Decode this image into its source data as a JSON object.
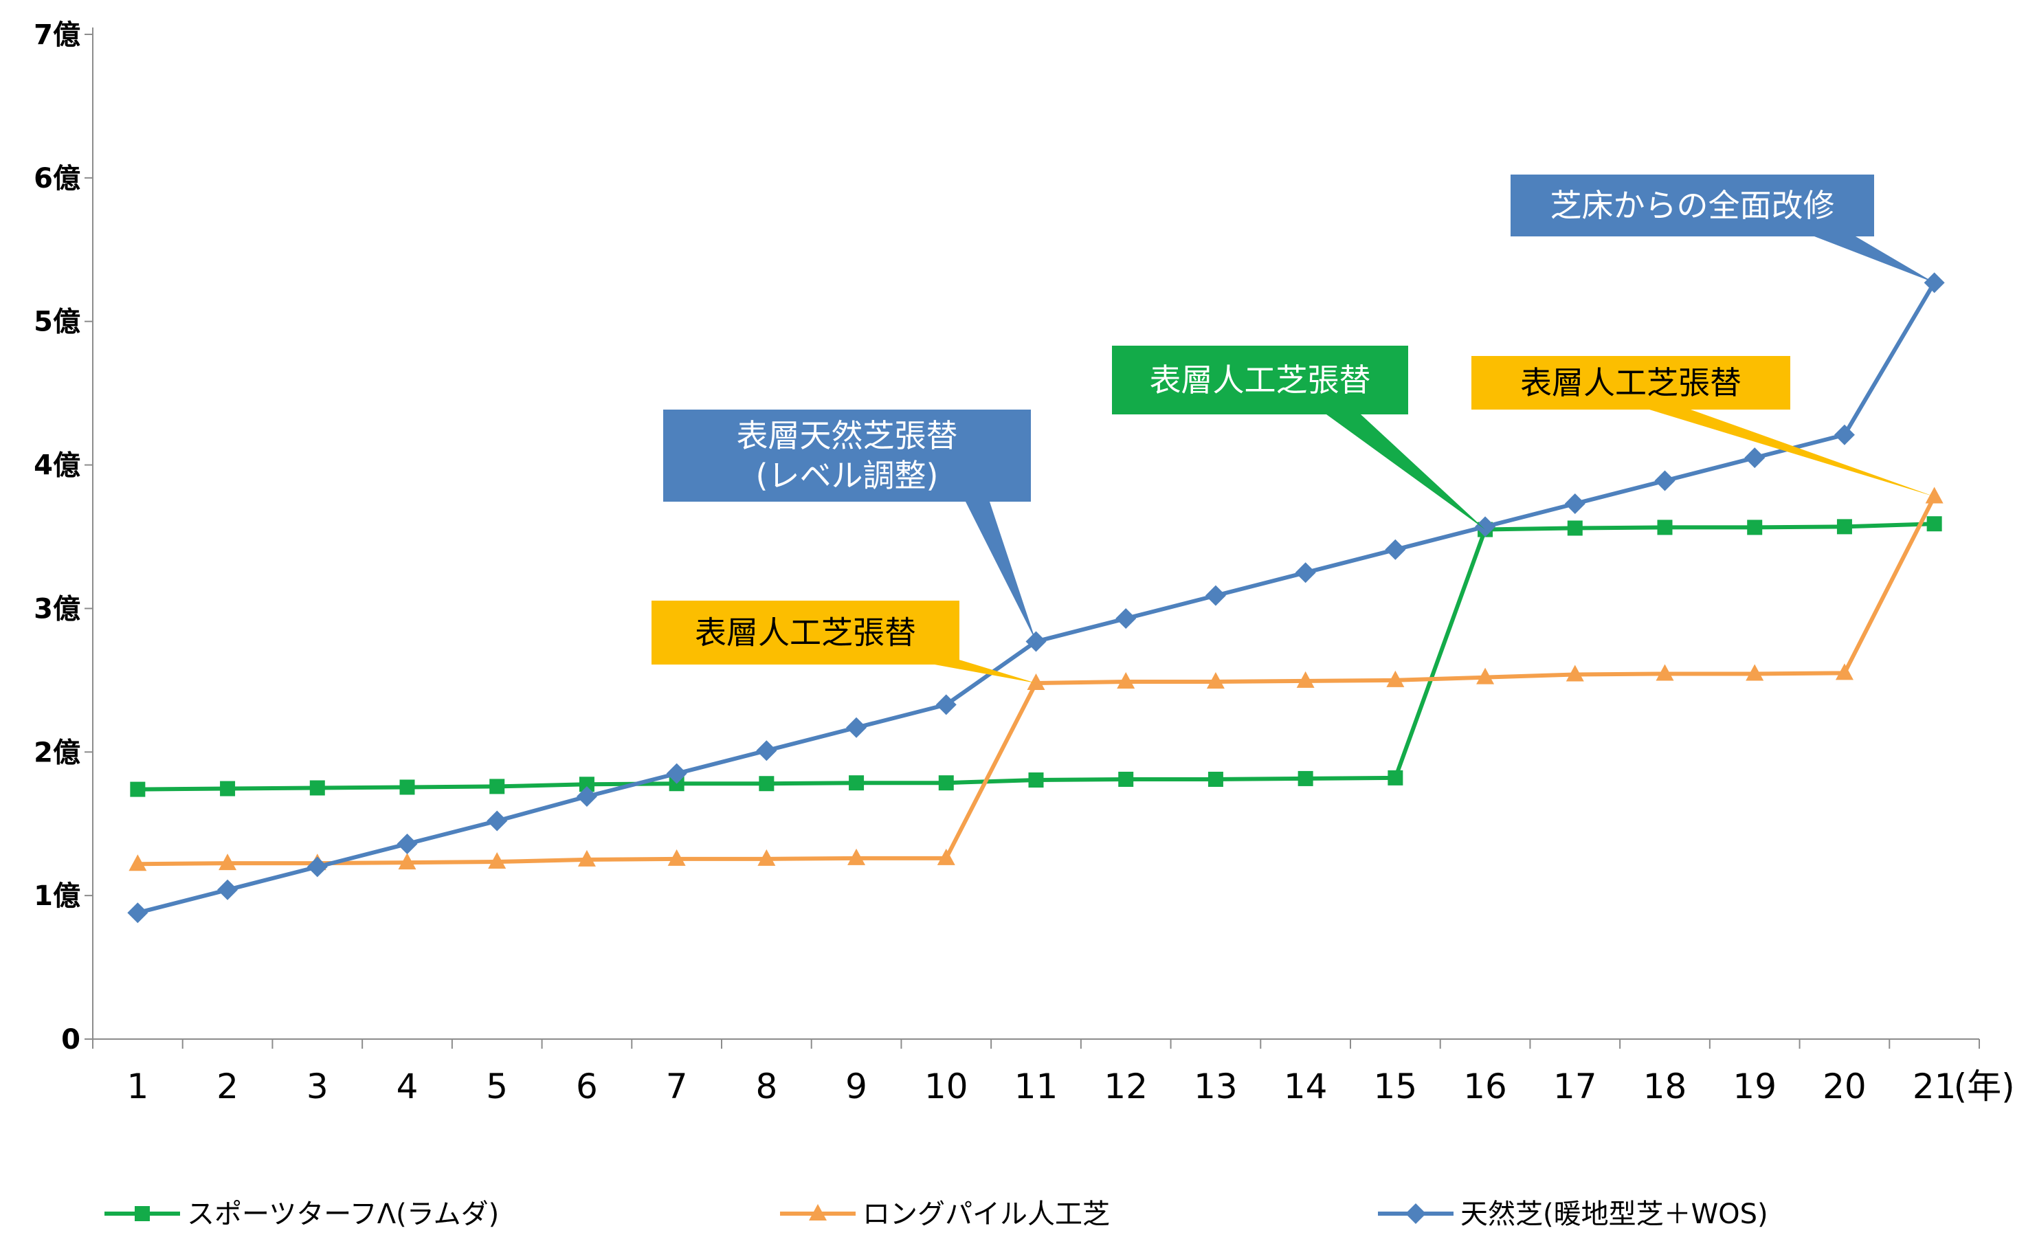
{
  "chart_data": {
    "type": "line",
    "title": "",
    "x": [
      1,
      2,
      3,
      4,
      5,
      6,
      7,
      8,
      9,
      10,
      11,
      12,
      13,
      14,
      15,
      16,
      17,
      18,
      19,
      20,
      21
    ],
    "x_tick_labels": [
      "1",
      "2",
      "3",
      "4",
      "5",
      "6",
      "7",
      "8",
      "9",
      "10",
      "11",
      "12",
      "13",
      "14",
      "15",
      "16",
      "17",
      "18",
      "19",
      "20",
      "21"
    ],
    "x_unit_label": "(年)",
    "ylim": [
      0,
      7
    ],
    "y_ticks": [
      {
        "value": 0,
        "label": "0"
      },
      {
        "value": 1,
        "label": "1億"
      },
      {
        "value": 2,
        "label": "2億"
      },
      {
        "value": 3,
        "label": "3億"
      },
      {
        "value": 4,
        "label": "4億"
      },
      {
        "value": 5,
        "label": "5億"
      },
      {
        "value": 6,
        "label": "6億"
      },
      {
        "value": 7,
        "label": "7億"
      }
    ],
    "grid": false,
    "legend_position": "bottom",
    "series": [
      {
        "name": "スポーツターフΛ(ラムダ)",
        "color": "#13AB49",
        "marker": "square",
        "values": [
          1.74,
          1.745,
          1.75,
          1.755,
          1.76,
          1.775,
          1.78,
          1.78,
          1.785,
          1.785,
          1.805,
          1.81,
          1.81,
          1.815,
          1.82,
          3.55,
          3.56,
          3.565,
          3.565,
          3.57,
          3.59
        ]
      },
      {
        "name": "ロングパイル人工芝",
        "color": "#F5A04C",
        "marker": "triangle",
        "values": [
          1.22,
          1.225,
          1.225,
          1.23,
          1.235,
          1.25,
          1.255,
          1.255,
          1.26,
          1.26,
          2.48,
          2.49,
          2.49,
          2.495,
          2.5,
          2.52,
          2.54,
          2.545,
          2.545,
          2.55,
          3.78
        ]
      },
      {
        "name": "天然芝(暖地型芝＋WOS)",
        "color": "#4E81BD",
        "marker": "diamond",
        "values": [
          0.88,
          1.04,
          1.2,
          1.36,
          1.52,
          1.69,
          1.85,
          2.01,
          2.17,
          2.33,
          2.77,
          2.93,
          3.09,
          3.25,
          3.41,
          3.57,
          3.73,
          3.89,
          4.05,
          4.21,
          5.27
        ]
      }
    ],
    "annotations": [
      {
        "text": "表層天然芝張替\n(レベル調整)",
        "color": "#4E81BD",
        "text_color": "#ffffff",
        "x": 11,
        "y": 2.77
      },
      {
        "text": "表層人工芝張替",
        "color": "#FCBE00",
        "text_color": "#000000",
        "x": 11,
        "y": 2.48
      },
      {
        "text": "表層人工芝張替",
        "color": "#13AB49",
        "text_color": "#ffffff",
        "x": 16,
        "y": 3.55
      },
      {
        "text": "表層人工芝張替",
        "color": "#FCBE00",
        "text_color": "#000000",
        "x": 21,
        "y": 3.78
      },
      {
        "text": "芝床からの全面改修",
        "color": "#4E81BD",
        "text_color": "#ffffff",
        "x": 21,
        "y": 5.27
      }
    ]
  }
}
